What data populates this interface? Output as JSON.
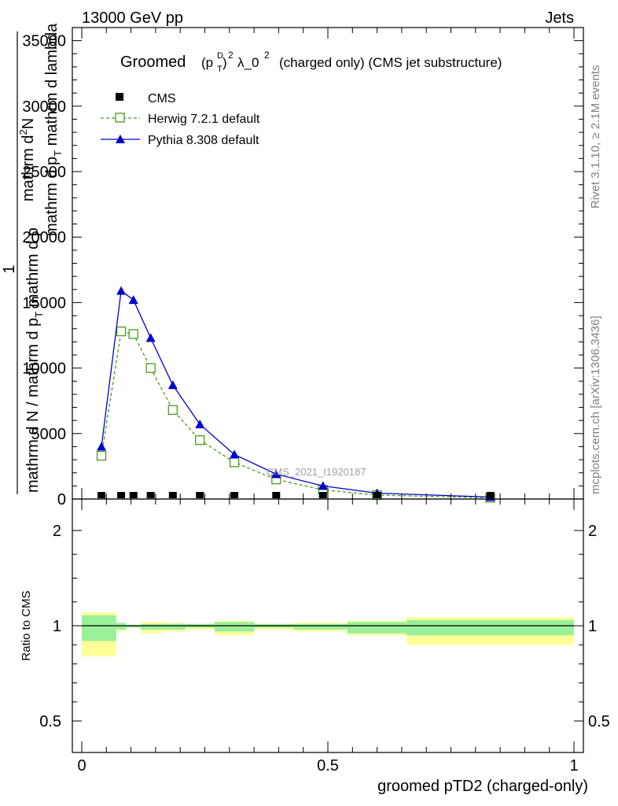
{
  "header": {
    "left": "13000 GeV pp",
    "right": "Jets"
  },
  "plot": {
    "title_prefix": "Groomed",
    "title_sym_p": "(p",
    "title_sup_d": "D",
    "title_sub_t": "T",
    "title_close": ")",
    "title_sup_2": "2",
    "title_lambda": "λ_0",
    "title_sup_2b": "2",
    "title_suffix": "(charged only) (CMS jet substructure)",
    "watermark": "CMS_2021_I1920187",
    "ylabel_top": "mathrm d",
    "ylabel_top_sup": "2",
    "ylabel_top_n": "N",
    "ylabel_mid": "mathrm d p",
    "ylabel_mid_sub": "T",
    "ylabel_mid_rest": " mathrm d lambda",
    "ylabel_one": "1",
    "ylabel_bottom": "mathrm d N / mathrm d p",
    "ylabel_bottom_sub": "T",
    "ylabel_bottom_rest": " mathrm d p",
    "ratio_ylabel": "Ratio to CMS",
    "xlabel": "groomed pTD2 (charged-only)"
  },
  "side": {
    "rivet": "Rivet 3.1.10, ≥ 2.1M events",
    "mcplots": "mcplots.cern.ch [arXiv:1306.3436]"
  },
  "legend": [
    {
      "label": "CMS",
      "color": "#000000",
      "marker": "square-filled"
    },
    {
      "label": "Herwig 7.2.1 default",
      "color": "#4c9a1a",
      "marker": "square-open-dashed"
    },
    {
      "label": "Pythia 8.308 default",
      "color": "#0000cc",
      "marker": "triangle-filled"
    }
  ],
  "chart_data": {
    "type": "line",
    "xlim": [
      0,
      1
    ],
    "ylim": [
      0,
      36000
    ],
    "ratio_ylim": [
      0.35,
      2.25
    ],
    "x_ticks": [
      "0",
      "0.5",
      "1"
    ],
    "y_ticks": [
      "0",
      "5000",
      "10000",
      "15000",
      "20000",
      "25000",
      "30000",
      "35000"
    ],
    "ratio_ticks": [
      "0.5",
      "1",
      "2"
    ],
    "bins": [
      [
        0.0,
        0.07
      ],
      [
        0.07,
        0.09
      ],
      [
        0.09,
        0.12
      ],
      [
        0.12,
        0.165
      ],
      [
        0.165,
        0.21
      ],
      [
        0.21,
        0.27
      ],
      [
        0.27,
        0.35
      ],
      [
        0.35,
        0.43
      ],
      [
        0.43,
        0.54
      ],
      [
        0.54,
        0.66
      ],
      [
        0.66,
        1.0
      ]
    ],
    "series": [
      {
        "name": "CMS",
        "color": "#000000",
        "x": [
          0.04,
          0.08,
          0.105,
          0.14,
          0.185,
          0.24,
          0.31,
          0.395,
          0.49,
          0.6,
          0.83
        ],
        "values": [
          60,
          60,
          60,
          60,
          50,
          45,
          40,
          30,
          20,
          15,
          10
        ]
      },
      {
        "name": "Herwig 7.2.1 default",
        "color": "#4c9a1a",
        "x": [
          0.04,
          0.08,
          0.105,
          0.14,
          0.185,
          0.24,
          0.31,
          0.395,
          0.49,
          0.6,
          0.83
        ],
        "values": [
          3300,
          12800,
          12600,
          10000,
          6800,
          4500,
          2800,
          1500,
          700,
          300,
          100
        ]
      },
      {
        "name": "Pythia 8.308 default",
        "color": "#0000cc",
        "x": [
          0.04,
          0.08,
          0.105,
          0.14,
          0.185,
          0.24,
          0.31,
          0.395,
          0.49,
          0.6,
          0.83
        ],
        "values": [
          4000,
          15900,
          15200,
          12300,
          8700,
          5700,
          3400,
          1900,
          1000,
          450,
          150
        ]
      }
    ],
    "ratio_bands": {
      "stat": [
        [
          0.92,
          1.11
        ],
        [
          0.98,
          1.03
        ],
        [
          0.99,
          1.01
        ],
        [
          0.98,
          1.02
        ],
        [
          0.98,
          1.02
        ],
        [
          0.99,
          1.02
        ],
        [
          0.97,
          1.04
        ],
        [
          0.99,
          1.02
        ],
        [
          0.98,
          1.02
        ],
        [
          0.96,
          1.04
        ],
        [
          0.95,
          1.06
        ]
      ],
      "syst": [
        [
          0.84,
          1.14
        ],
        [
          0.97,
          1.03
        ],
        [
          0.99,
          1.01
        ],
        [
          0.96,
          1.04
        ],
        [
          0.97,
          1.03
        ],
        [
          0.98,
          1.02
        ],
        [
          0.95,
          1.05
        ],
        [
          0.98,
          1.02
        ],
        [
          0.97,
          1.03
        ],
        [
          0.95,
          1.05
        ],
        [
          0.9,
          1.09
        ]
      ],
      "stat_color": "#99f099",
      "syst_color": "#ffff99"
    }
  }
}
